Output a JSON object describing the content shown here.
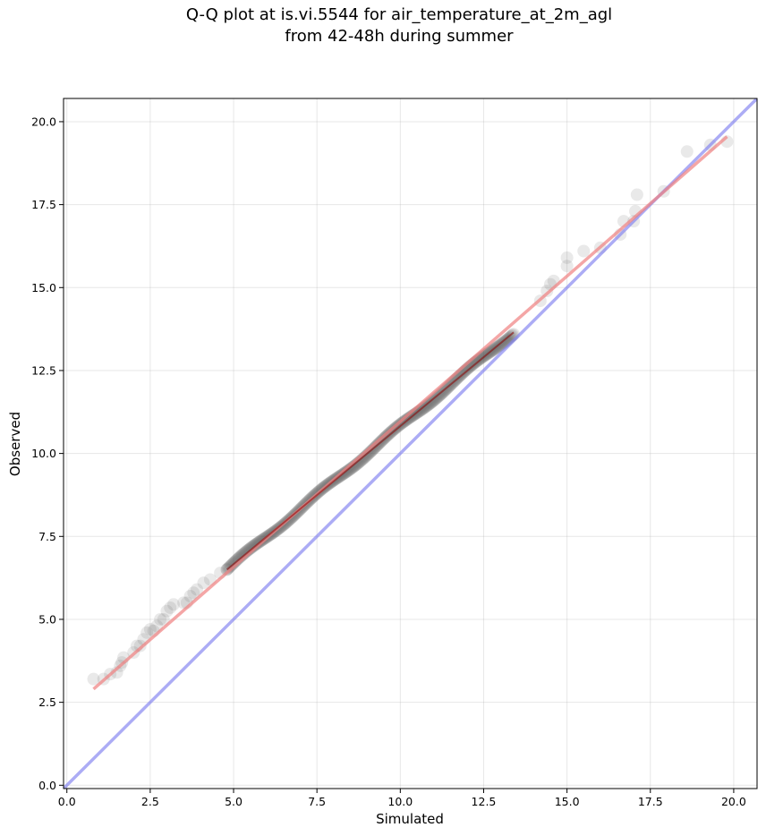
{
  "chart_data": {
    "type": "scatter",
    "title": "Q-Q plot at is.vi.5544 for air_temperature_at_2m_agl",
    "subtitle": "from 42-48h during summer",
    "xlabel": "Simulated",
    "ylabel": "Observed",
    "xlim": [
      -0.1,
      20.7
    ],
    "ylim": [
      -0.1,
      20.7
    ],
    "xticks": [
      "0.0",
      "2.5",
      "5.0",
      "7.5",
      "10.0",
      "12.5",
      "15.0",
      "17.5",
      "20.0"
    ],
    "yticks": [
      "0.0",
      "2.5",
      "5.0",
      "7.5",
      "10.0",
      "12.5",
      "15.0",
      "17.5",
      "20.0"
    ],
    "grid": true,
    "colors": {
      "points": "#555555",
      "fit_line": "#f08080",
      "identity_line": "#8080f0",
      "fit_core": "#8b0000"
    },
    "identity_line": {
      "x": [
        -0.1,
        20.7
      ],
      "y": [
        -0.1,
        20.7
      ]
    },
    "fit_line": {
      "x": [
        0.8,
        19.8
      ],
      "y": [
        2.9,
        19.55
      ]
    },
    "points": {
      "x": [
        0.8,
        1.1,
        1.3,
        1.5,
        1.6,
        1.65,
        1.7,
        2.0,
        2.1,
        2.2,
        2.3,
        2.4,
        2.5,
        2.6,
        2.7,
        2.8,
        2.9,
        3.0,
        3.1,
        3.2,
        3.5,
        3.6,
        3.7,
        3.8,
        3.9,
        4.1,
        4.3,
        4.6,
        4.8,
        14.2,
        14.4,
        14.5,
        14.6,
        15.0,
        15.0,
        15.5,
        16.0,
        16.6,
        16.7,
        17.0,
        17.05,
        17.1,
        17.9,
        18.6,
        19.3,
        19.8
      ],
      "y": [
        3.2,
        3.2,
        3.35,
        3.4,
        3.6,
        3.7,
        3.85,
        4.0,
        4.2,
        4.2,
        4.4,
        4.6,
        4.7,
        4.65,
        4.8,
        5.0,
        5.0,
        5.25,
        5.35,
        5.45,
        5.5,
        5.5,
        5.7,
        5.8,
        5.9,
        6.1,
        6.2,
        6.4,
        6.5,
        14.6,
        14.9,
        15.1,
        15.2,
        15.65,
        15.9,
        16.1,
        16.2,
        16.6,
        17.0,
        17.0,
        17.3,
        17.8,
        17.9,
        19.1,
        19.3,
        19.4
      ],
      "dense_band": {
        "x": [
          4.8,
          13.4
        ],
        "y": [
          6.5,
          13.65
        ]
      }
    }
  }
}
